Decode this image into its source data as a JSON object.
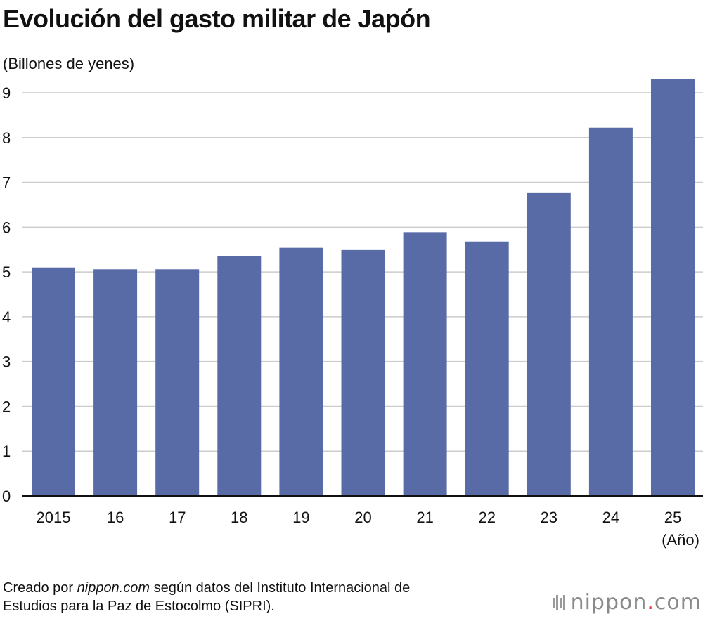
{
  "header": {
    "title": "Evolución del gasto militar de Japón",
    "unit": "(Billones de yenes)"
  },
  "chart_data": {
    "type": "bar",
    "title": "Evolución del gasto militar de Japón",
    "ylabel": "(Billones de yenes)",
    "xlabel": "(Año)",
    "categories": [
      "2015",
      "16",
      "17",
      "18",
      "19",
      "20",
      "21",
      "22",
      "23",
      "24",
      "25"
    ],
    "values": [
      5.1,
      5.06,
      5.06,
      5.36,
      5.54,
      5.49,
      5.89,
      5.68,
      6.76,
      8.22,
      9.3
    ],
    "ylim": [
      0,
      9
    ],
    "yticks": [
      0,
      1,
      2,
      3,
      4,
      5,
      6,
      7,
      8,
      9
    ],
    "grid": true,
    "bar_color": "#586ba6",
    "grid_color": "#cccccc"
  },
  "footer": {
    "source_prefix": "Creado por ",
    "source_site": "nippon.com",
    "source_suffix": " según datos del Instituto Internacional de",
    "source_line2": "Estudios para la Paz de Estocolmo (SIPRI).",
    "logo_main": "nippon",
    "logo_dot": ".",
    "logo_end": "com"
  }
}
